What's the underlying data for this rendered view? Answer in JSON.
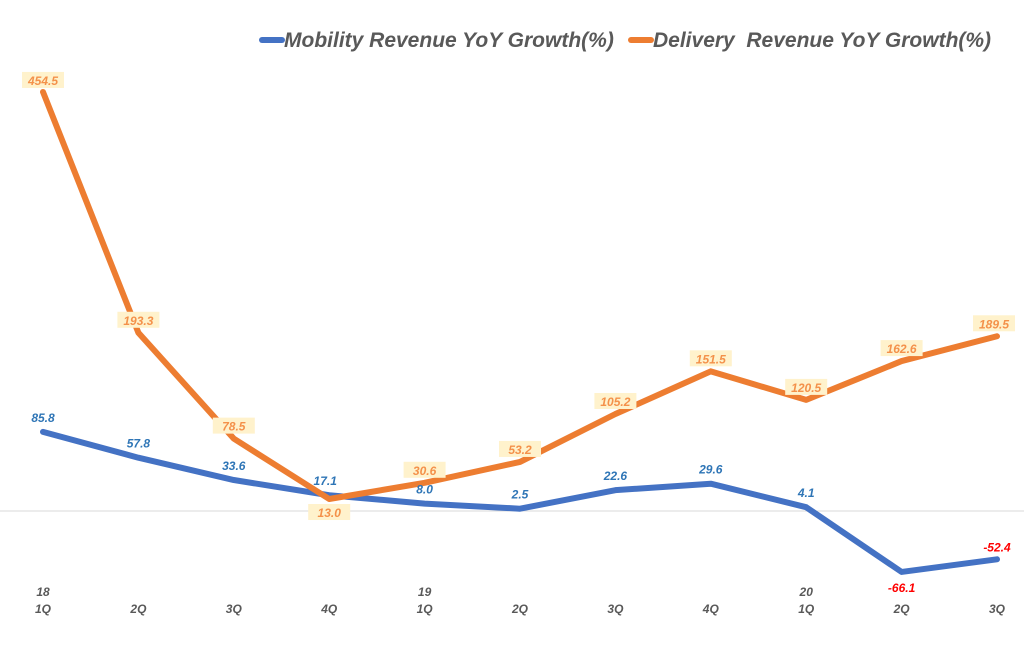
{
  "chart_data": {
    "type": "line",
    "title": "",
    "xlabel": "",
    "ylabel": "",
    "categories": [
      "18 1Q",
      "2Q",
      "3Q",
      "4Q",
      "19 1Q",
      "2Q",
      "3Q",
      "4Q",
      "20 1Q",
      "2Q",
      "3Q"
    ],
    "tick_labels": [
      {
        "year": "18",
        "q": "1Q"
      },
      {
        "year": "",
        "q": "2Q"
      },
      {
        "year": "",
        "q": "3Q"
      },
      {
        "year": "",
        "q": "4Q"
      },
      {
        "year": "19",
        "q": "1Q"
      },
      {
        "year": "",
        "q": "2Q"
      },
      {
        "year": "",
        "q": "3Q"
      },
      {
        "year": "",
        "q": "4Q"
      },
      {
        "year": "20",
        "q": "1Q"
      },
      {
        "year": "",
        "q": "2Q"
      },
      {
        "year": "",
        "q": "3Q"
      }
    ],
    "series": [
      {
        "name": "Mobility Revenue YoY Growth(%)",
        "color": "#4472C4",
        "label_color": "#2E75B6",
        "values": [
          85.8,
          57.8,
          33.6,
          17.1,
          8.0,
          2.5,
          22.6,
          29.6,
          4.1,
          -66.1,
          -52.4
        ],
        "labels": [
          "85.8",
          "57.8",
          "33.6",
          "17.1",
          "8.0",
          "2.5",
          "22.6",
          "29.6",
          "4.1",
          "-66.1",
          "-52.4"
        ]
      },
      {
        "name": "Delivery  Revenue YoY Growth(%)",
        "color": "#ED7D31",
        "label_color": "#F4914A",
        "label_bg": "#FFF2CC",
        "values": [
          454.5,
          193.3,
          78.5,
          13.0,
          30.6,
          53.2,
          105.2,
          151.5,
          120.5,
          162.6,
          189.5
        ],
        "labels": [
          "454.5",
          "193.3",
          "78.5",
          "13.0",
          "30.6",
          "53.2",
          "105.2",
          "151.5",
          "120.5",
          "162.6",
          "189.5"
        ]
      }
    ],
    "negative_label_color": "#FF0000",
    "ylim": [
      -90,
      480
    ],
    "grid": false,
    "zero_line": true,
    "legend_position": "top"
  }
}
